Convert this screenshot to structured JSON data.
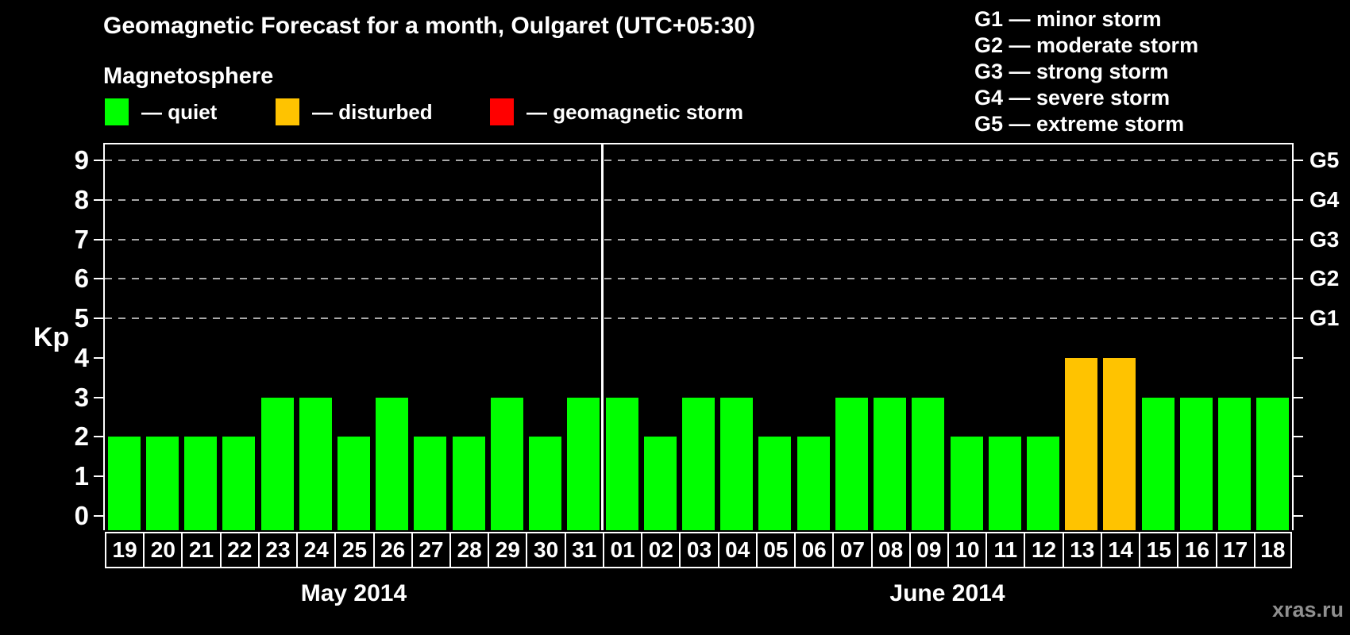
{
  "header": {
    "title": "Geomagnetic Forecast for a month, Oulgaret (UTC+05:30)",
    "legend_heading": "Magnetosphere",
    "legend_items": [
      {
        "name": "quiet",
        "label": "— quiet",
        "color": "#00ff00"
      },
      {
        "name": "disturbed",
        "label": "— disturbed",
        "color": "#ffc300"
      },
      {
        "name": "storm",
        "label": "— geomagnetic storm",
        "color": "#ff0000"
      }
    ],
    "g_scale_legend": [
      "G1 — minor storm",
      "G2 — moderate storm",
      "G3 — strong storm",
      "G4 — severe storm",
      "G5 — extreme storm"
    ]
  },
  "chart_data": {
    "type": "bar",
    "title": "Geomagnetic Forecast for a month, Oulgaret (UTC+05:30)",
    "ylabel": "Kp",
    "ylim": [
      0,
      9
    ],
    "yticks": [
      0,
      1,
      2,
      3,
      4,
      5,
      6,
      7,
      8,
      9
    ],
    "gridlines_kp": [
      5,
      6,
      7,
      8,
      9
    ],
    "right_axis": [
      {
        "kp": 5,
        "label": "G1"
      },
      {
        "kp": 6,
        "label": "G2"
      },
      {
        "kp": 7,
        "label": "G3"
      },
      {
        "kp": 8,
        "label": "G4"
      },
      {
        "kp": 9,
        "label": "G5"
      }
    ],
    "color_rules": {
      "quiet_max_kp": 3,
      "disturbed_max_kp": 4
    },
    "groups": [
      {
        "label": "May 2014",
        "days": [
          "19",
          "20",
          "21",
          "22",
          "23",
          "24",
          "25",
          "26",
          "27",
          "28",
          "29",
          "30",
          "31"
        ],
        "values": [
          2,
          2,
          2,
          2,
          3,
          3,
          2,
          3,
          2,
          2,
          3,
          2,
          3
        ]
      },
      {
        "label": "June 2014",
        "days": [
          "01",
          "02",
          "03",
          "04",
          "05",
          "06",
          "07",
          "08",
          "09",
          "10",
          "11",
          "12",
          "13",
          "14",
          "15",
          "16",
          "17",
          "18"
        ],
        "values": [
          3,
          2,
          3,
          3,
          2,
          2,
          3,
          3,
          3,
          2,
          2,
          2,
          4,
          4,
          3,
          3,
          3,
          3
        ]
      }
    ],
    "legend_position": "top-left",
    "grid": "dashed horizontal at G-storm levels only"
  },
  "watermark": "xras.ru"
}
